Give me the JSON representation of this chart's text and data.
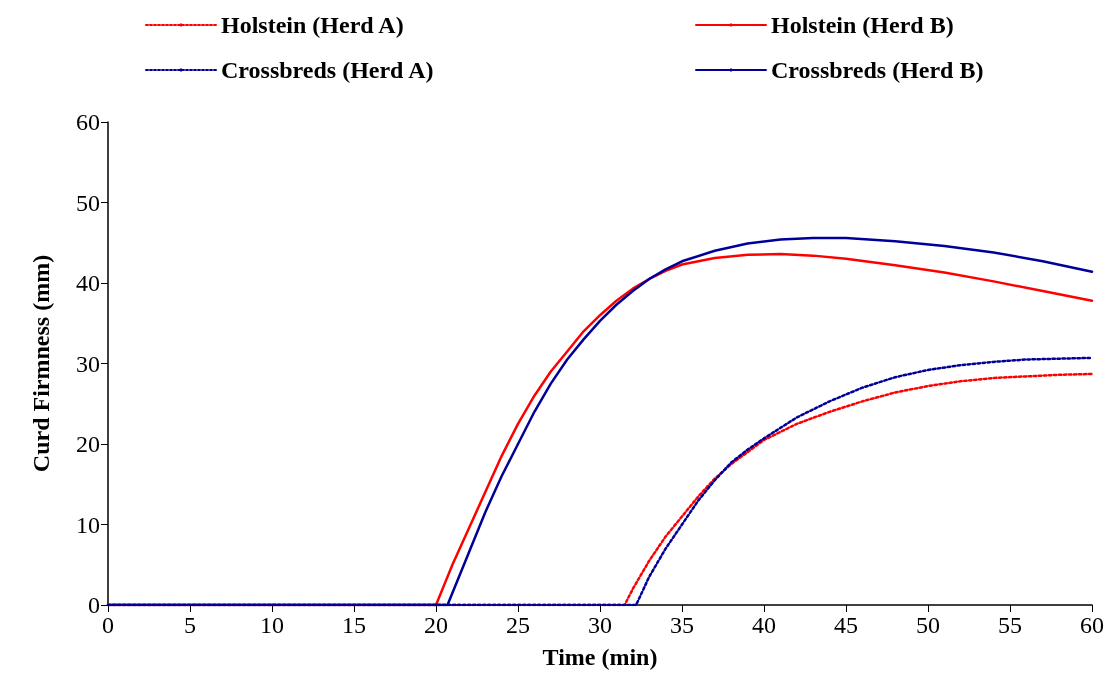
{
  "chart_data": {
    "type": "line",
    "xlabel": "Time (min)",
    "ylabel": "Curd Firmness (mm)",
    "xlim": [
      0,
      60
    ],
    "xticks": [
      0,
      5,
      10,
      15,
      20,
      25,
      30,
      35,
      40,
      45,
      50,
      55,
      60
    ],
    "ylim": [
      0,
      60
    ],
    "yticks": [
      0,
      10,
      20,
      30,
      40,
      50,
      60
    ],
    "grid": false,
    "legend": "top",
    "marker": "none",
    "series": [
      {
        "name": "Holstein (Herd A)",
        "color": "#ff0000",
        "line_style": "dotted",
        "x": [
          0,
          31.5,
          32,
          33,
          34,
          35,
          36,
          37,
          38,
          39,
          40,
          42,
          44,
          46,
          48,
          50,
          52,
          54,
          56,
          58,
          60
        ],
        "values": [
          0,
          0,
          2,
          5.5,
          8.5,
          11,
          13.5,
          15.7,
          17.5,
          19,
          20.5,
          22.5,
          24,
          25.3,
          26.4,
          27.2,
          27.8,
          28.2,
          28.4,
          28.6,
          28.7
        ]
      },
      {
        "name": "Holstein (Herd B)",
        "color": "#ff0000",
        "line_style": "solid",
        "x": [
          0,
          20,
          20.5,
          21,
          22,
          23,
          24,
          25,
          26,
          27,
          28,
          29,
          30,
          31,
          32,
          33,
          34,
          35,
          37,
          39,
          41,
          43,
          45,
          48,
          51,
          54,
          57,
          60
        ],
        "values": [
          0,
          0,
          2.5,
          5,
          9.5,
          14,
          18.5,
          22.5,
          26,
          29,
          31.5,
          34,
          36,
          37.8,
          39.3,
          40.5,
          41.5,
          42.3,
          43.1,
          43.5,
          43.6,
          43.4,
          43,
          42.2,
          41.3,
          40.2,
          39,
          37.8
        ]
      },
      {
        "name": "Crossbreds (Herd A)",
        "color": "#000099",
        "line_style": "dotted",
        "x": [
          0,
          32.2,
          33,
          34,
          35,
          36,
          37,
          38,
          39,
          40,
          42,
          44,
          46,
          48,
          50,
          52,
          54,
          56,
          58,
          60
        ],
        "values": [
          0,
          0,
          3.5,
          7,
          10,
          13,
          15.5,
          17.7,
          19.3,
          20.7,
          23.3,
          25.3,
          27,
          28.3,
          29.2,
          29.8,
          30.2,
          30.5,
          30.6,
          30.7
        ]
      },
      {
        "name": "Crossbreds (Herd B)",
        "color": "#000099",
        "line_style": "solid",
        "x": [
          0,
          20.7,
          21,
          22,
          23,
          24,
          25,
          26,
          27,
          28,
          29,
          30,
          31,
          32,
          33,
          34,
          35,
          37,
          39,
          41,
          43,
          45,
          48,
          51,
          54,
          57,
          60
        ],
        "values": [
          0,
          0,
          1.5,
          6.5,
          11.5,
          16,
          20,
          24,
          27.5,
          30.5,
          33,
          35.3,
          37.3,
          39,
          40.5,
          41.7,
          42.7,
          44,
          44.9,
          45.4,
          45.6,
          45.6,
          45.2,
          44.6,
          43.8,
          42.7,
          41.4
        ]
      }
    ]
  }
}
